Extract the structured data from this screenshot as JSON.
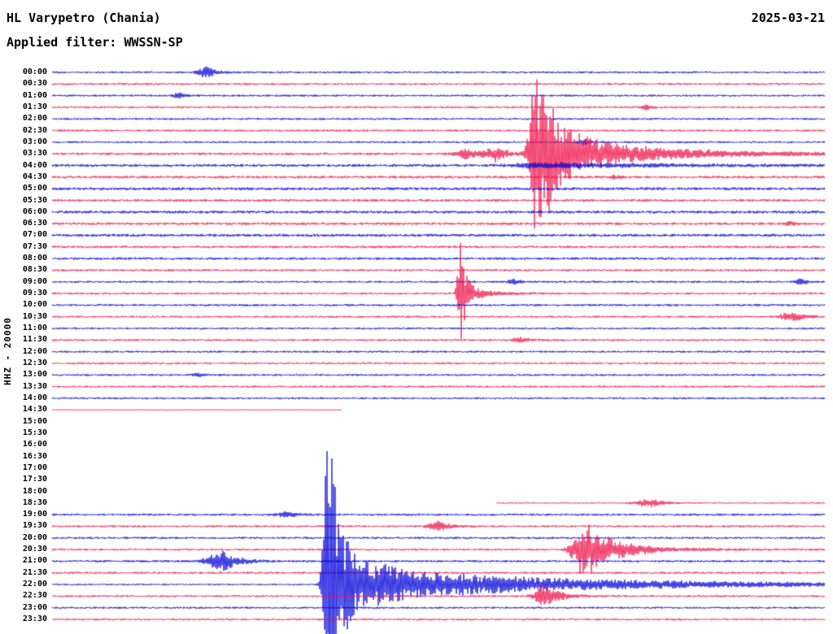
{
  "header": {
    "station": "HL Varypetro (Chania)",
    "date": "2025-03-21",
    "filter": "Applied filter: WWSSN-SP"
  },
  "axis": {
    "left_label": "HHZ - 20000"
  },
  "palette": {
    "blue": "#0000d8",
    "red": "#ee1147",
    "text": "#000000",
    "background": "#ffffff"
  },
  "chart_data": {
    "type": "line",
    "subtype": "helicorder-seismogram",
    "title": "HL Varypetro (Chania)",
    "date": "2025-03-21",
    "filter": "WWSSN-SP",
    "channel_scale_label": "HHZ - 20000",
    "minutes_per_row": 30,
    "num_rows": 48,
    "legend": "events are [position_fraction_along_row, amplitude_px, rise_px, decay_px]; seg are [start_fraction, end_fraction] of recorded data; n is background noise amplitude px",
    "rows": [
      {
        "t": "00:00",
        "c": "blue",
        "n": 1.3,
        "ev": [
          [
            0.201,
            7,
            8,
            10
          ]
        ]
      },
      {
        "t": "00:30",
        "c": "red",
        "n": 1.3
      },
      {
        "t": "01:00",
        "c": "blue",
        "n": 1.3,
        "ev": [
          [
            0.166,
            3.5,
            6,
            8
          ]
        ]
      },
      {
        "t": "01:30",
        "c": "red",
        "n": 1.3,
        "ev": [
          [
            0.77,
            2.5,
            5,
            7
          ]
        ]
      },
      {
        "t": "02:00",
        "c": "blue",
        "n": 1.3
      },
      {
        "t": "02:30",
        "c": "red",
        "n": 1.3
      },
      {
        "t": "03:00",
        "c": "blue",
        "n": 1.3,
        "ev": [
          [
            0.688,
            3.5,
            5,
            8
          ]
        ]
      },
      {
        "t": "03:30",
        "c": "red",
        "n": 1.5,
        "ev": [
          [
            0.538,
            7,
            10,
            14
          ],
          [
            0.575,
            9,
            9,
            12
          ],
          [
            0.625,
            118,
            5,
            16
          ],
          [
            0.645,
            26,
            10,
            60
          ],
          [
            0.7,
            7,
            40,
            170
          ]
        ]
      },
      {
        "t": "04:00",
        "c": "blue",
        "n": 1.8,
        "ev": [
          [
            0.64,
            3,
            30,
            150
          ]
        ]
      },
      {
        "t": "04:30",
        "c": "red",
        "n": 1.6,
        "ev": [
          [
            0.73,
            2.5,
            5,
            7
          ]
        ]
      },
      {
        "t": "05:00",
        "c": "blue",
        "n": 1.8
      },
      {
        "t": "05:30",
        "c": "red",
        "n": 1.6
      },
      {
        "t": "06:00",
        "c": "blue",
        "n": 1.8
      },
      {
        "t": "06:30",
        "c": "red",
        "n": 1.6,
        "ev": [
          [
            0.955,
            3,
            6,
            8
          ]
        ]
      },
      {
        "t": "07:00",
        "c": "blue",
        "n": 1.8
      },
      {
        "t": "07:30",
        "c": "red",
        "n": 1.5
      },
      {
        "t": "08:00",
        "c": "blue",
        "n": 1.6
      },
      {
        "t": "08:30",
        "c": "red",
        "n": 1.4
      },
      {
        "t": "09:00",
        "c": "blue",
        "n": 1.3,
        "ev": [
          [
            0.598,
            3.5,
            5,
            8
          ],
          [
            0.969,
            4,
            5,
            7
          ]
        ]
      },
      {
        "t": "09:30",
        "c": "red",
        "n": 1.3,
        "ev": [
          [
            0.529,
            65,
            3,
            6
          ],
          [
            0.542,
            6,
            8,
            30
          ]
        ]
      },
      {
        "t": "10:00",
        "c": "blue",
        "n": 1.4
      },
      {
        "t": "10:30",
        "c": "red",
        "n": 1.3,
        "ev": [
          [
            0.958,
            6,
            10,
            14
          ]
        ]
      },
      {
        "t": "11:00",
        "c": "blue",
        "n": 1.3
      },
      {
        "t": "11:30",
        "c": "red",
        "n": 1.3,
        "ev": [
          [
            0.606,
            4,
            6,
            9
          ]
        ]
      },
      {
        "t": "12:00",
        "c": "blue",
        "n": 1.3
      },
      {
        "t": "12:30",
        "c": "red",
        "n": 1.3
      },
      {
        "t": "13:00",
        "c": "blue",
        "n": 1.3,
        "ev": [
          [
            0.19,
            2.2,
            5,
            7
          ]
        ]
      },
      {
        "t": "13:30",
        "c": "red",
        "n": 1.3
      },
      {
        "t": "14:00",
        "c": "blue",
        "n": 1.3
      },
      {
        "t": "14:30",
        "c": "red",
        "n": 0.5,
        "seg": [
          [
            0,
            0.375
          ]
        ]
      },
      {
        "t": "15:00",
        "c": "blue",
        "n": 1.3,
        "seg": []
      },
      {
        "t": "15:30",
        "c": "red",
        "n": 1.3,
        "seg": []
      },
      {
        "t": "16:00",
        "c": "blue",
        "n": 1.3,
        "seg": []
      },
      {
        "t": "16:30",
        "c": "red",
        "n": 1.3,
        "seg": []
      },
      {
        "t": "17:00",
        "c": "blue",
        "n": 1.3,
        "seg": []
      },
      {
        "t": "17:30",
        "c": "red",
        "n": 1.3,
        "seg": []
      },
      {
        "t": "18:00",
        "c": "blue",
        "n": 1.3,
        "seg": []
      },
      {
        "t": "18:30",
        "c": "red",
        "n": 1.0,
        "seg": [
          [
            0.575,
            1
          ]
        ],
        "ev": [
          [
            0.775,
            5,
            12,
            16
          ]
        ]
      },
      {
        "t": "19:00",
        "c": "blue",
        "n": 1.4,
        "ev": [
          [
            0.303,
            4,
            8,
            10
          ]
        ]
      },
      {
        "t": "19:30",
        "c": "red",
        "n": 1.3,
        "ev": [
          [
            0.501,
            6,
            10,
            14
          ]
        ]
      },
      {
        "t": "20:00",
        "c": "blue",
        "n": 1.4
      },
      {
        "t": "20:30",
        "c": "red",
        "n": 1.3,
        "ev": [
          [
            0.685,
            30,
            8,
            26
          ],
          [
            0.7,
            10,
            12,
            60
          ]
        ]
      },
      {
        "t": "21:00",
        "c": "blue",
        "n": 1.4,
        "ev": [
          [
            0.222,
            13,
            14,
            18
          ]
        ]
      },
      {
        "t": "21:30",
        "c": "red",
        "n": 1.4
      },
      {
        "t": "22:00",
        "c": "blue",
        "n": 1.1,
        "ev": [
          [
            0.357,
            215,
            4,
            10
          ],
          [
            0.368,
            48,
            6,
            40
          ],
          [
            0.43,
            13,
            20,
            160
          ],
          [
            0.55,
            5,
            60,
            400
          ]
        ]
      },
      {
        "t": "22:30",
        "c": "red",
        "n": 1.3,
        "ev": [
          [
            0.636,
            15,
            8,
            18
          ]
        ]
      },
      {
        "t": "23:00",
        "c": "blue",
        "n": 1.3
      },
      {
        "t": "23:30",
        "c": "red",
        "n": 1.3
      }
    ]
  }
}
